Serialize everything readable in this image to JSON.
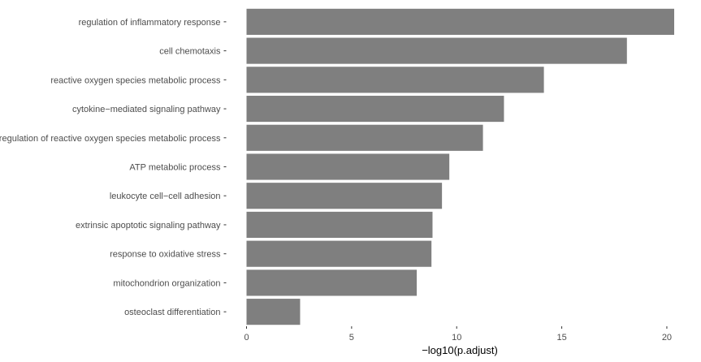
{
  "chart_data": {
    "type": "bar",
    "orientation": "horizontal",
    "categories": [
      "regulation of inflammatory response",
      "cell chemotaxis",
      "reactive oxygen species metabolic process",
      "cytokine−mediated signaling pathway",
      "regulation of reactive oxygen species metabolic process",
      "ATP metabolic process",
      "leukocyte cell−cell adhesion",
      "extrinsic apoptotic signaling pathway",
      "response to oxidative stress",
      "mitochondrion organization",
      "osteoclast differentiation"
    ],
    "values": [
      20.35,
      18.1,
      14.15,
      12.25,
      11.25,
      9.65,
      9.3,
      8.85,
      8.8,
      8.1,
      2.55
    ],
    "xticks": [
      0,
      5,
      10,
      15,
      20
    ],
    "xlim": [
      0,
      20.35
    ],
    "xlabel": "−log10(p.adjust)",
    "ylabel": "",
    "title": "",
    "grid": false,
    "legend": "none",
    "bar_color": "#7f7f7f"
  }
}
